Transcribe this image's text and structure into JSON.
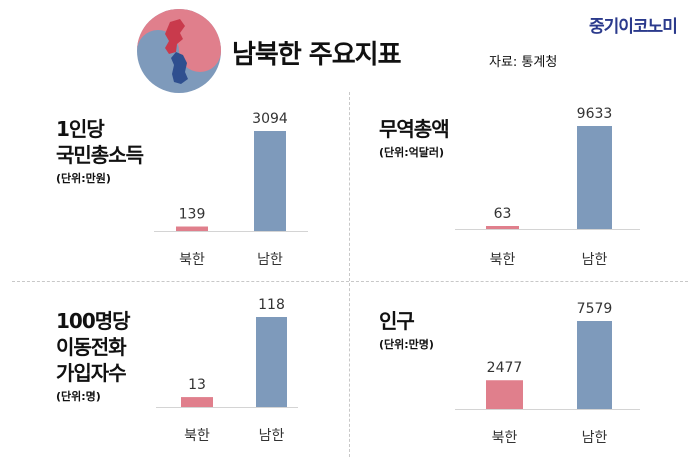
{
  "brand": "중기이코노미",
  "title": "남북한 주요지표",
  "source": "자료: 통계청",
  "colors": {
    "north": "#e07f8c",
    "south": "#7e9abb",
    "baseline": "#d4d4d4",
    "text": "#111111",
    "label": "#333333"
  },
  "categories": [
    "북한",
    "남한"
  ],
  "panels": [
    {
      "title": "1인당\n국민총소득",
      "unit": "(단위:만원)"
    },
    {
      "title": "무역총액",
      "unit": "(단위:억달러)"
    },
    {
      "title": "100명당\n이동전화\n가입자수",
      "unit": "(단위:명)"
    },
    {
      "title": "인구",
      "unit": "(단위:만명)"
    }
  ],
  "chart_data": [
    {
      "type": "bar",
      "title": "1인당 국민총소득",
      "unit": "(단위:만원)",
      "categories": [
        "북한",
        "남한"
      ],
      "values": [
        139,
        3094
      ],
      "data_labels": [
        "139",
        "3094"
      ]
    },
    {
      "type": "bar",
      "title": "무역총액",
      "unit": "(단위:억달러)",
      "categories": [
        "북한",
        "남한"
      ],
      "values": [
        63,
        9633
      ],
      "data_labels": [
        "63",
        "9633"
      ]
    },
    {
      "type": "bar",
      "title": "100명당 이동전화 가입자수",
      "unit": "(단위:명)",
      "categories": [
        "북한",
        "남한"
      ],
      "values": [
        13,
        118
      ],
      "data_labels": [
        "13",
        "118"
      ]
    },
    {
      "type": "bar",
      "title": "인구",
      "unit": "(단위:만명)",
      "categories": [
        "북한",
        "남한"
      ],
      "values": [
        2477,
        7579
      ],
      "data_labels": [
        "2477",
        "7579"
      ]
    }
  ]
}
